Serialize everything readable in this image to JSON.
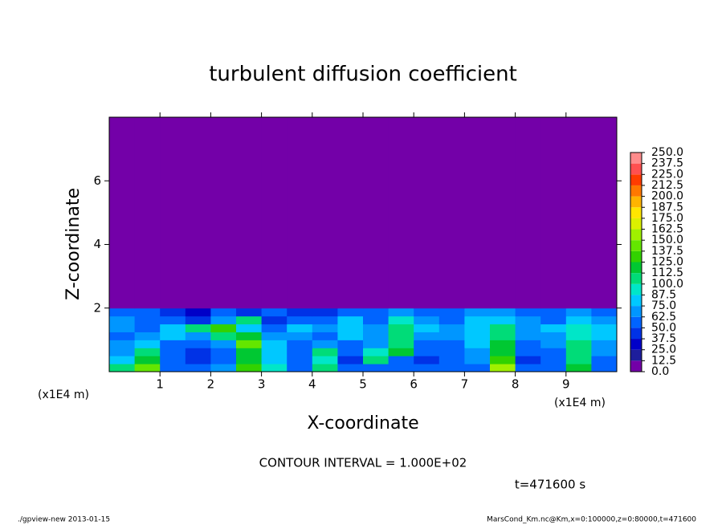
{
  "chart_data": {
    "type": "heatmap",
    "title": "turbulent diffusion coefficient",
    "x_label": "X-coordinate",
    "y_label": "Z-coordinate",
    "x_unit": "(x1E4 m)",
    "y_unit": "(x1E4 m)",
    "xlim": [
      0,
      10
    ],
    "ylim": [
      0,
      8
    ],
    "xticks": [
      1,
      2,
      3,
      4,
      5,
      6,
      7,
      8,
      9
    ],
    "yticks": [
      2,
      4,
      6
    ],
    "x_edges": [
      0,
      0.5,
      1,
      1.5,
      2,
      2.5,
      3,
      3.5,
      4,
      4.5,
      5,
      5.5,
      6,
      6.5,
      7,
      7.5,
      8,
      8.5,
      9,
      9.5,
      10
    ],
    "y_edges": [
      0,
      0.25,
      0.5,
      0.75,
      1,
      1.25,
      1.5,
      1.75,
      2,
      8
    ],
    "values": [
      [
        100,
        140,
        60,
        50,
        70,
        130,
        90,
        55,
        105,
        50,
        55,
        60,
        50,
        55,
        60,
        150,
        50,
        60,
        120,
        55
      ],
      [
        80,
        120,
        55,
        45,
        60,
        115,
        85,
        50,
        95,
        45,
        100,
        60,
        45,
        50,
        65,
        125,
        45,
        55,
        110,
        60
      ],
      [
        70,
        110,
        50,
        40,
        55,
        120,
        80,
        55,
        110,
        60,
        90,
        115,
        50,
        55,
        70,
        120,
        50,
        60,
        105,
        65
      ],
      [
        65,
        75,
        60,
        55,
        70,
        140,
        75,
        60,
        70,
        55,
        70,
        100,
        60,
        60,
        75,
        115,
        55,
        65,
        100,
        70
      ],
      [
        60,
        70,
        75,
        65,
        110,
        120,
        70,
        65,
        60,
        75,
        65,
        110,
        70,
        65,
        80,
        110,
        65,
        70,
        95,
        75
      ],
      [
        65,
        55,
        80,
        110,
        130,
        85,
        60,
        75,
        65,
        80,
        70,
        105,
        75,
        70,
        85,
        100,
        70,
        75,
        90,
        80
      ],
      [
        70,
        60,
        50,
        40,
        70,
        100,
        45,
        55,
        60,
        75,
        55,
        90,
        70,
        60,
        80,
        85,
        70,
        60,
        80,
        70
      ],
      [
        60,
        55,
        45,
        30,
        55,
        40,
        50,
        45,
        40,
        55,
        60,
        70,
        55,
        60,
        65,
        70,
        60,
        55,
        65,
        60
      ],
      [
        0,
        0,
        0,
        0,
        0,
        0,
        0,
        0,
        0,
        0,
        0,
        0,
        0,
        0,
        0,
        0,
        0,
        0,
        0,
        0
      ]
    ],
    "colorbar": {
      "levels": [
        {
          "value": 0,
          "label": "0.0"
        },
        12.5,
        {
          "value": 25,
          "label": "25.0"
        },
        37.5,
        {
          "value": 50,
          "label": "50.0"
        },
        62.5,
        {
          "value": 75,
          "label": "75.0"
        },
        87.5,
        {
          "value": 100,
          "label": "100.0"
        },
        112.5,
        {
          "value": 125,
          "label": "125.0"
        },
        137.5,
        {
          "value": 150,
          "label": "150.0"
        },
        162.5,
        {
          "value": 175,
          "label": "175.0"
        },
        187.5,
        {
          "value": 200,
          "label": "200.0"
        },
        212.5,
        {
          "value": 225,
          "label": "225.0"
        },
        237.5,
        {
          "value": 250,
          "label": "250.0"
        }
      ],
      "colors": [
        "#7300a8",
        "#1e1e9c",
        "#0000c8",
        "#0032e6",
        "#0064ff",
        "#0096ff",
        "#00c8ff",
        "#00e6c8",
        "#00dc78",
        "#00c832",
        "#32d200",
        "#64e600",
        "#a0f000",
        "#dcf000",
        "#ffe600",
        "#ffb400",
        "#ff7800",
        "#ff3c00",
        "#ff5050",
        "#ff8c8c"
      ]
    },
    "contour_interval": "CONTOUR INTERVAL = 1.000E+02",
    "time_label": "t=471600 s",
    "footer_left": "./gpview-new  2013-01-15",
    "footer_right": "MarsCond_Km.nc@Km,x=0:100000,z=0:80000,t=471600"
  }
}
